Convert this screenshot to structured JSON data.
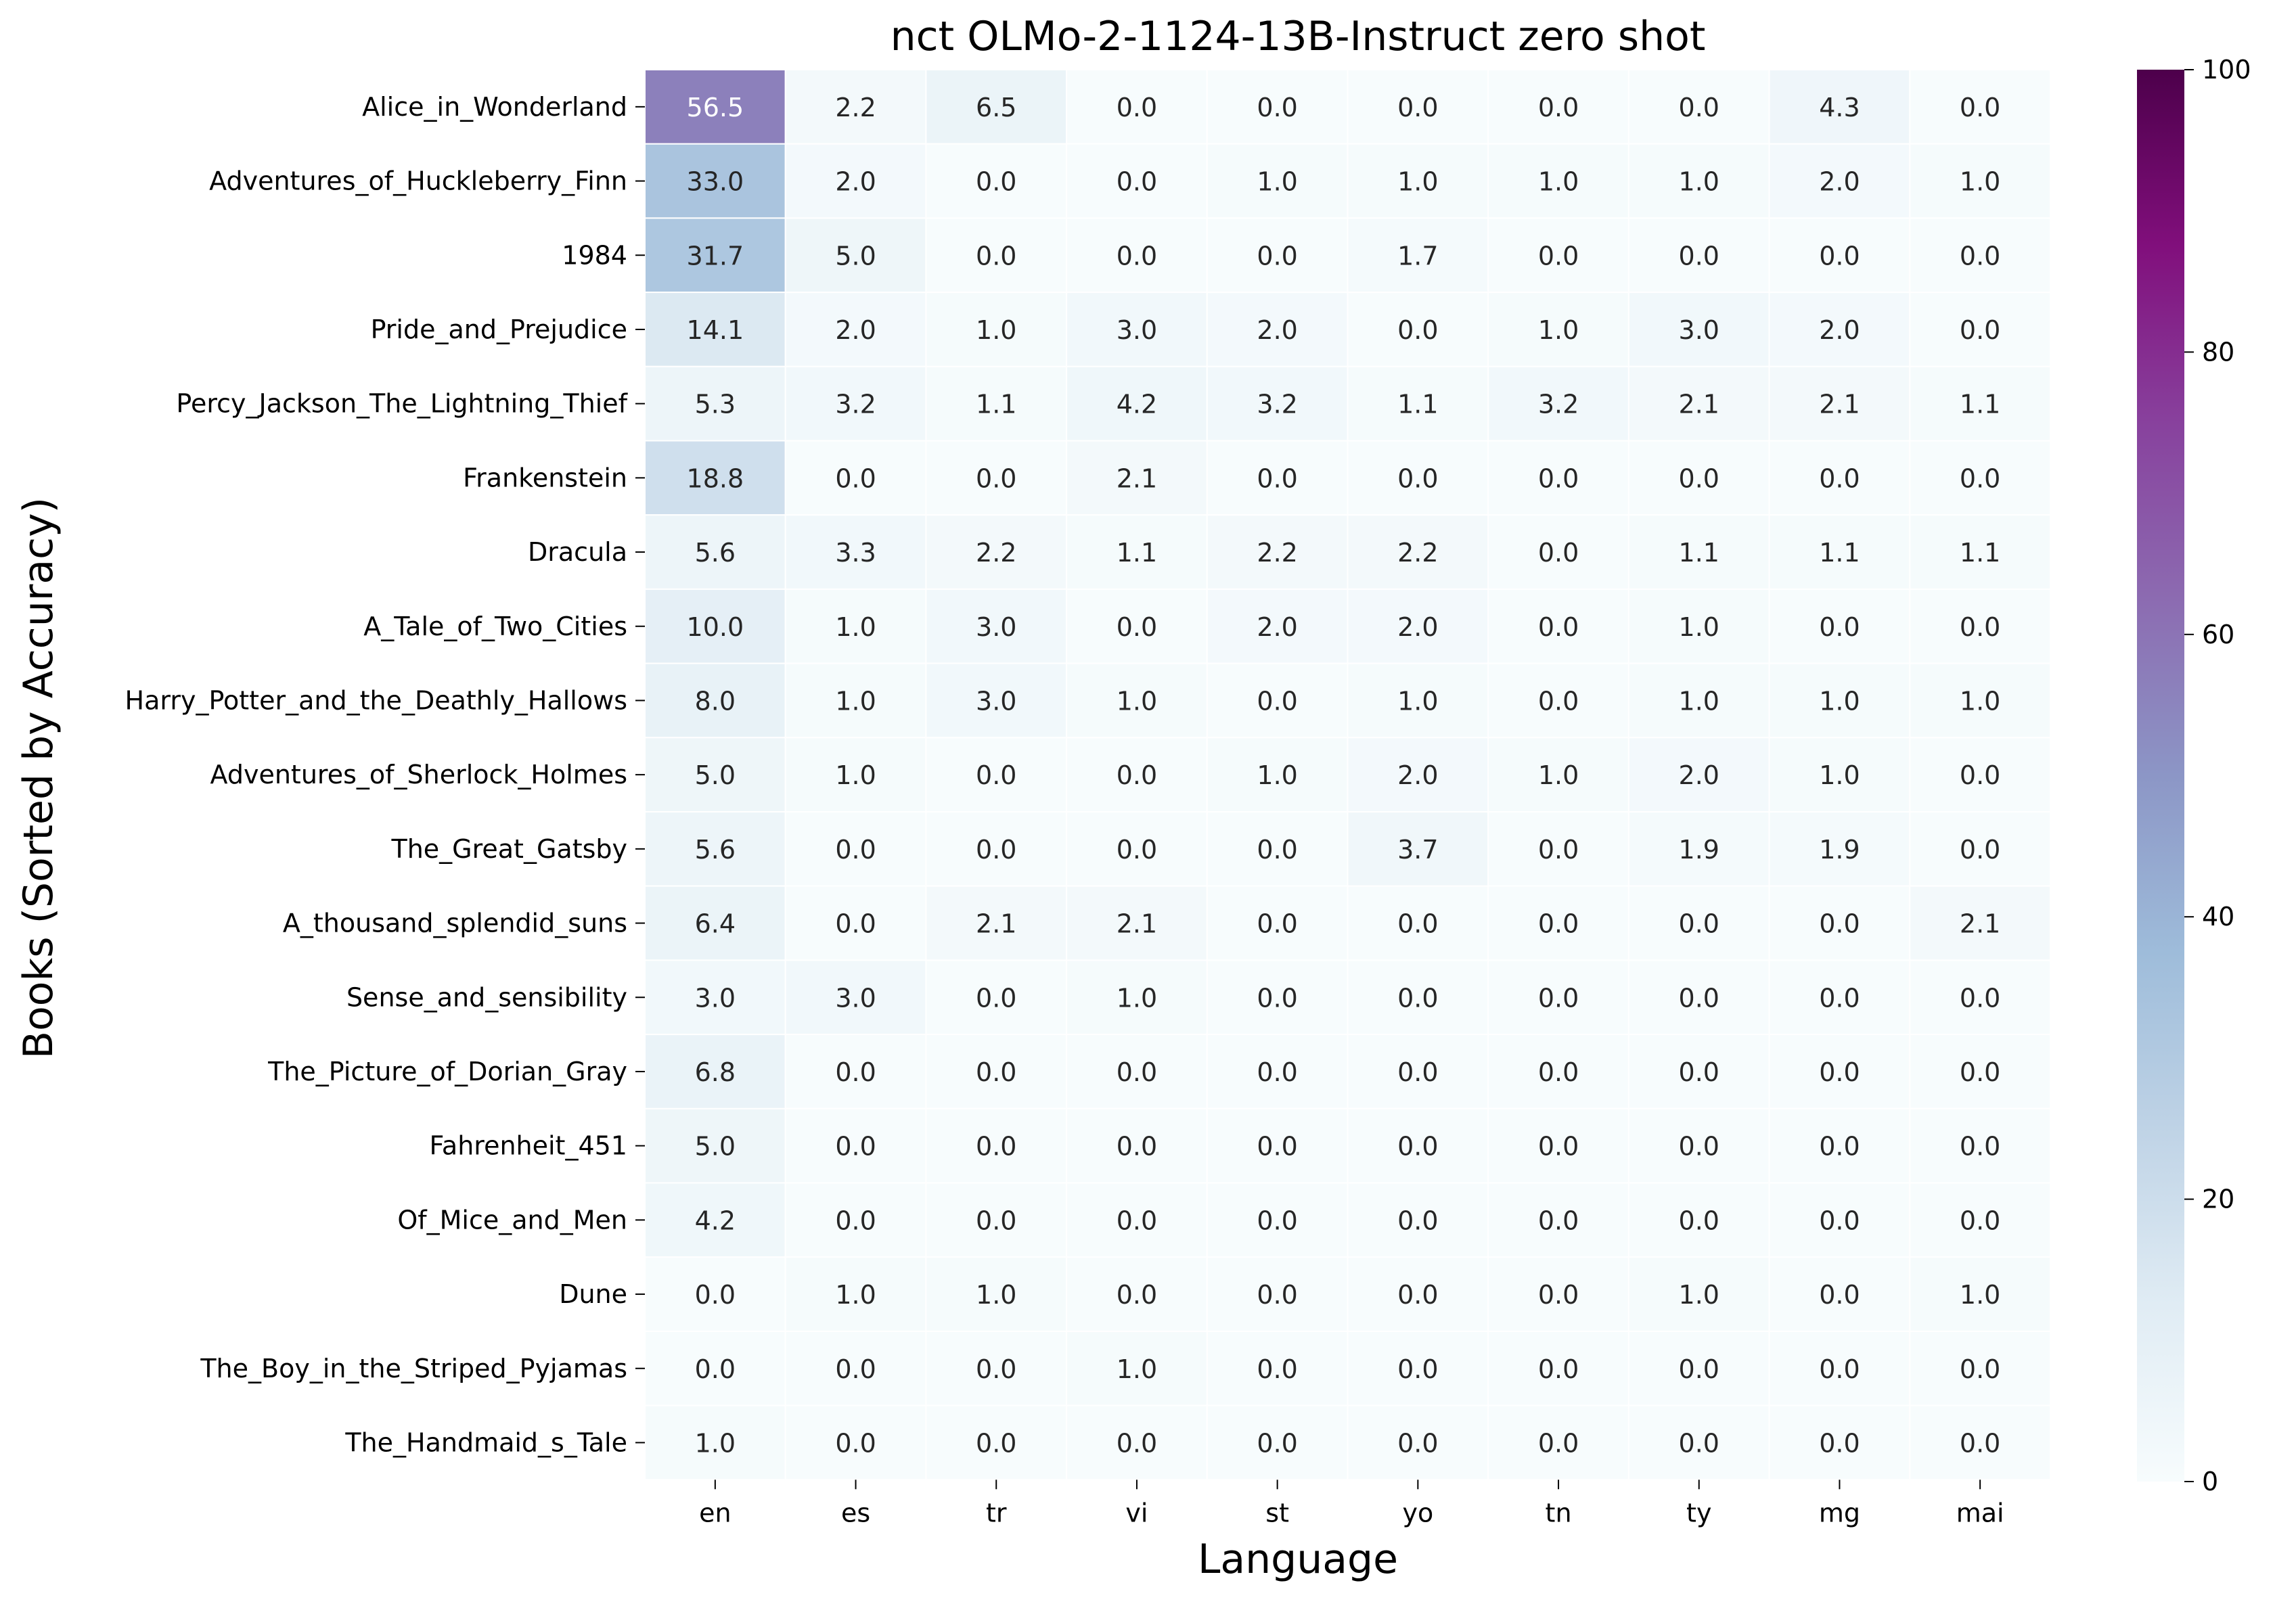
{
  "chart_data": {
    "type": "heatmap",
    "title": "nct OLMo-2-1124-13B-Instruct zero shot",
    "xlabel": "Language",
    "ylabel": "Books (Sorted by Accuracy)",
    "columns": [
      "en",
      "es",
      "tr",
      "vi",
      "st",
      "yo",
      "tn",
      "ty",
      "mg",
      "mai"
    ],
    "rows": [
      "Alice_in_Wonderland",
      "Adventures_of_Huckleberry_Finn",
      "1984",
      "Pride_and_Prejudice",
      "Percy_Jackson_The_Lightning_Thief",
      "Frankenstein",
      "Dracula",
      "A_Tale_of_Two_Cities",
      "Harry_Potter_and_the_Deathly_Hallows",
      "Adventures_of_Sherlock_Holmes",
      "The_Great_Gatsby",
      "A_thousand_splendid_suns",
      "Sense_and_sensibility",
      "The_Picture_of_Dorian_Gray",
      "Fahrenheit_451",
      "Of_Mice_and_Men",
      "Dune",
      "The_Boy_in_the_Striped_Pyjamas",
      "The_Handmaid_s_Tale"
    ],
    "values": [
      [
        56.5,
        2.2,
        6.5,
        0.0,
        0.0,
        0.0,
        0.0,
        0.0,
        4.3,
        0.0
      ],
      [
        33.0,
        2.0,
        0.0,
        0.0,
        1.0,
        1.0,
        1.0,
        1.0,
        2.0,
        1.0
      ],
      [
        31.7,
        5.0,
        0.0,
        0.0,
        0.0,
        1.7,
        0.0,
        0.0,
        0.0,
        0.0
      ],
      [
        14.1,
        2.0,
        1.0,
        3.0,
        2.0,
        0.0,
        1.0,
        3.0,
        2.0,
        0.0
      ],
      [
        5.3,
        3.2,
        1.1,
        4.2,
        3.2,
        1.1,
        3.2,
        2.1,
        2.1,
        1.1
      ],
      [
        18.8,
        0.0,
        0.0,
        2.1,
        0.0,
        0.0,
        0.0,
        0.0,
        0.0,
        0.0
      ],
      [
        5.6,
        3.3,
        2.2,
        1.1,
        2.2,
        2.2,
        0.0,
        1.1,
        1.1,
        1.1
      ],
      [
        10.0,
        1.0,
        3.0,
        0.0,
        2.0,
        2.0,
        0.0,
        1.0,
        0.0,
        0.0
      ],
      [
        8.0,
        1.0,
        3.0,
        1.0,
        0.0,
        1.0,
        0.0,
        1.0,
        1.0,
        1.0
      ],
      [
        5.0,
        1.0,
        0.0,
        0.0,
        1.0,
        2.0,
        1.0,
        2.0,
        1.0,
        0.0
      ],
      [
        5.6,
        0.0,
        0.0,
        0.0,
        0.0,
        3.7,
        0.0,
        1.9,
        1.9,
        0.0
      ],
      [
        6.4,
        0.0,
        2.1,
        2.1,
        0.0,
        0.0,
        0.0,
        0.0,
        0.0,
        2.1
      ],
      [
        3.0,
        3.0,
        0.0,
        1.0,
        0.0,
        0.0,
        0.0,
        0.0,
        0.0,
        0.0
      ],
      [
        6.8,
        0.0,
        0.0,
        0.0,
        0.0,
        0.0,
        0.0,
        0.0,
        0.0,
        0.0
      ],
      [
        5.0,
        0.0,
        0.0,
        0.0,
        0.0,
        0.0,
        0.0,
        0.0,
        0.0,
        0.0
      ],
      [
        4.2,
        0.0,
        0.0,
        0.0,
        0.0,
        0.0,
        0.0,
        0.0,
        0.0,
        0.0
      ],
      [
        0.0,
        1.0,
        1.0,
        0.0,
        0.0,
        0.0,
        0.0,
        1.0,
        0.0,
        1.0
      ],
      [
        0.0,
        0.0,
        0.0,
        1.0,
        0.0,
        0.0,
        0.0,
        0.0,
        0.0,
        0.0
      ],
      [
        1.0,
        0.0,
        0.0,
        0.0,
        0.0,
        0.0,
        0.0,
        0.0,
        0.0,
        0.0
      ]
    ],
    "value_range": [
      0,
      100
    ],
    "colormap": "BuPu",
    "colorbar_ticks": [
      0,
      20,
      40,
      60,
      80,
      100
    ],
    "grid": false,
    "cell_border_color": "#ffffff",
    "annotation_light_color": "#ffffff",
    "annotation_dark_color": "#262626"
  }
}
